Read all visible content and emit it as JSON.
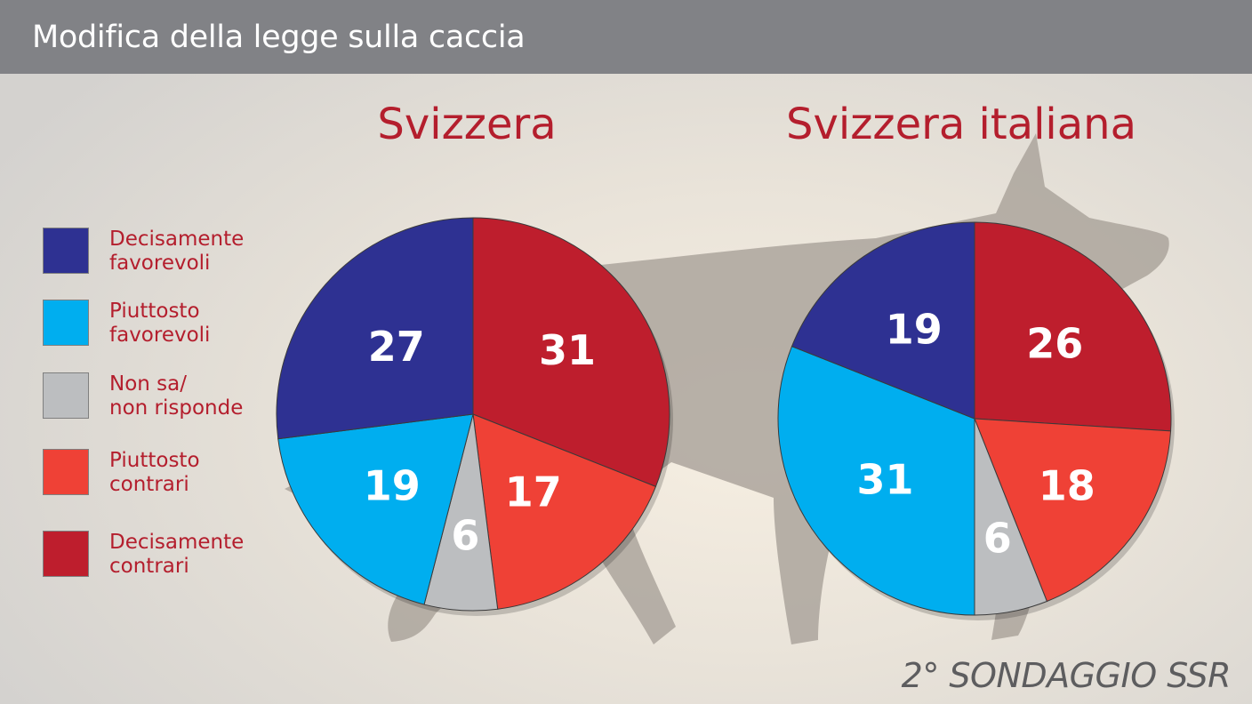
{
  "header": {
    "title": "Modifica della legge sulla caccia"
  },
  "legend": [
    {
      "label": "Decisamente\nfavorevoli",
      "color": "#2e3192"
    },
    {
      "label": "Piuttosto\nfavorevoli",
      "color": "#00aeef"
    },
    {
      "label": "Non sa/\nnon risponde",
      "color": "#bcbec0"
    },
    {
      "label": "Piuttosto\ncontrari",
      "color": "#ef4136"
    },
    {
      "label": "Decisamente\ncontrari",
      "color": "#be1e2d"
    }
  ],
  "chart_data": [
    {
      "type": "pie",
      "title": "Svizzera",
      "categories": [
        "Decisamente contrari",
        "Piuttosto contrari",
        "Non sa/non risponde",
        "Piuttosto favorevoli",
        "Decisamente favorevoli"
      ],
      "values": [
        31,
        17,
        6,
        19,
        27
      ],
      "colors": [
        "#be1e2d",
        "#ef4136",
        "#bcbec0",
        "#00aeef",
        "#2e3192"
      ]
    },
    {
      "type": "pie",
      "title": "Svizzera italiana",
      "categories": [
        "Decisamente contrari",
        "Piuttosto contrari",
        "Non sa/non risponde",
        "Piuttosto favorevoli",
        "Decisamente favorevoli"
      ],
      "values": [
        26,
        18,
        6,
        31,
        19
      ],
      "colors": [
        "#be1e2d",
        "#ef4136",
        "#bcbec0",
        "#00aeef",
        "#2e3192"
      ]
    }
  ],
  "footer": {
    "survey": "2° SONDAGGIO SSR"
  },
  "style": {
    "title_color": "#b41e2d",
    "label_color": "#ffffff",
    "dog_color": "#aba49c"
  }
}
